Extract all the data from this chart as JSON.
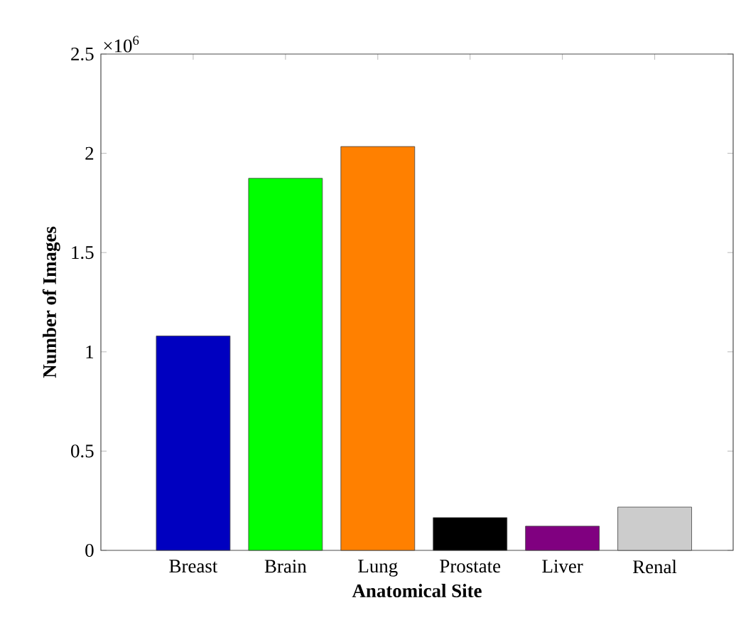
{
  "chart_data": {
    "type": "bar",
    "xlabel": "Anatomical Site",
    "ylabel": "Number of Images",
    "categories": [
      "Breast",
      "Brain",
      "Lung",
      "Prostate",
      "Liver",
      "Renal"
    ],
    "values": [
      1.08,
      1.874,
      2.034,
      0.165,
      0.122,
      0.218
    ],
    "colors": [
      "#0000c0",
      "#00ff00",
      "#ff8000",
      "#000000",
      "#800080",
      "#cccccc"
    ],
    "ylim": [
      0,
      2.5
    ],
    "yticks": [
      0,
      0.5,
      1,
      1.5,
      2,
      2.5
    ],
    "annotations": [
      "×10$^{6}$"
    ],
    "grid": false
  }
}
